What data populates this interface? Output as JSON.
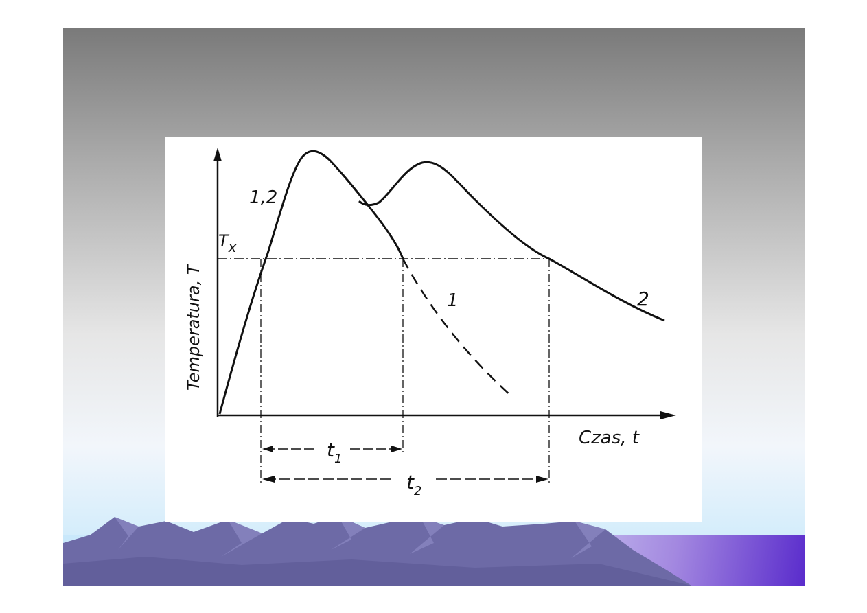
{
  "diagram": {
    "y_axis_label": "Temperatura, T",
    "x_axis_label": "Czas, t",
    "threshold_label": "T",
    "threshold_subscript": "x",
    "curve_label_shared": "1,2",
    "curve_label_1": "1",
    "curve_label_2": "2",
    "interval_1_label": "t",
    "interval_1_subscript": "1",
    "interval_2_label": "t",
    "interval_2_subscript": "2"
  },
  "colors": {
    "ink": "#111111",
    "slide_top": "#7a7a7a",
    "slide_bottom": "#cfe9f9",
    "mountain": "#6d6aa6",
    "accent_band": "#5a2ccc"
  }
}
